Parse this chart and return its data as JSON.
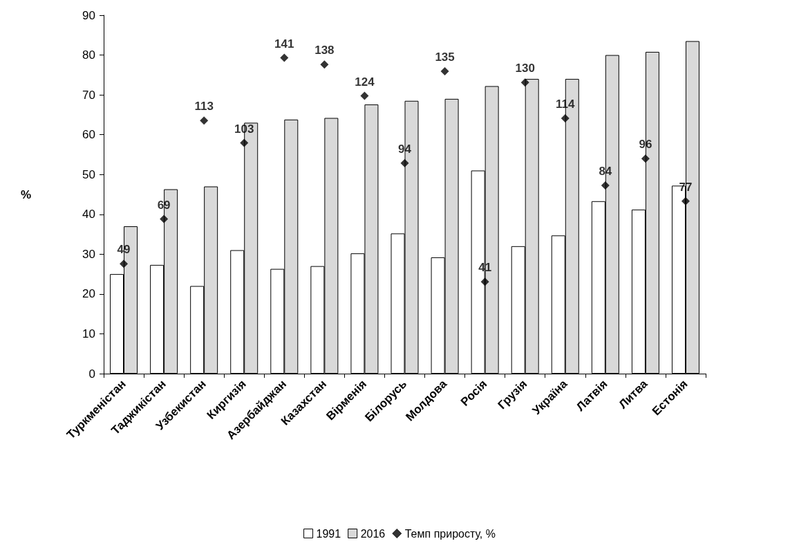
{
  "chart_data": {
    "type": "bar",
    "categories": [
      "Туркменістан",
      "Таджикістан",
      "Узбекистан",
      "Киргизія",
      "Азербайджан",
      "Казахстан",
      "Вірменія",
      "Білорусь",
      "Молдова",
      "Росія",
      "Грузія",
      "Україна",
      "Латвія",
      "Литва",
      "Естонія"
    ],
    "ylabel": "%",
    "series": [
      {
        "name": "1991",
        "color": "#ffffff",
        "values": [
          25,
          27.3,
          22,
          31,
          26.3,
          27,
          30.2,
          35.2,
          29.2,
          51,
          32,
          34.7,
          43.3,
          41.2,
          47.2
        ]
      },
      {
        "name": "2016",
        "color": "#d9d9d9",
        "values": [
          37,
          46.3,
          47,
          63,
          63.8,
          64.2,
          67.6,
          68.5,
          69,
          72.2,
          74,
          74,
          80,
          80.8,
          83.5
        ]
      },
      {
        "name": "Темп приросту, %",
        "type": "scatter",
        "axis": "y2",
        "color": "#000000",
        "values": [
          49,
          69,
          113,
          103,
          141,
          138,
          124,
          94,
          135,
          41,
          130,
          114,
          84,
          96,
          77
        ],
        "value_labels": [
          "49",
          "69",
          "113",
          "103",
          "141",
          "138",
          "124",
          "94",
          "135",
          "41",
          "130",
          "114",
          "84",
          "96",
          "77"
        ]
      }
    ],
    "ylim": [
      0,
      90
    ],
    "yticks": [
      0,
      10,
      20,
      30,
      40,
      50,
      60,
      70,
      80,
      90
    ],
    "y2lim": [
      0,
      160
    ],
    "marker": "diamond",
    "grid": false,
    "legend": "bottom"
  }
}
